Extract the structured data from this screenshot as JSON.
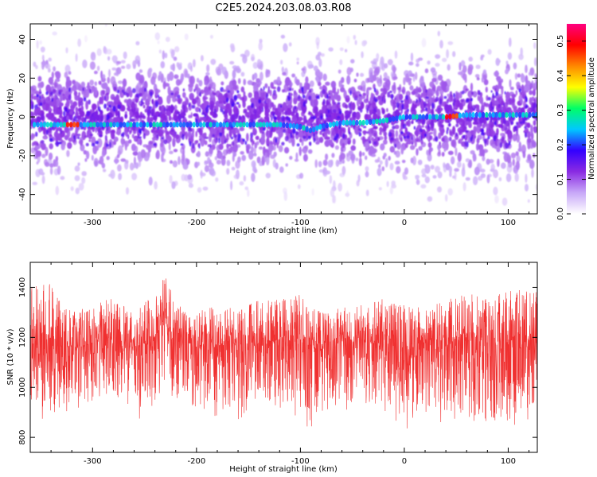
{
  "title": "C2E5.2024.203.08.03.R08",
  "chart_data": [
    {
      "type": "heatmap",
      "xlabel": "Height of straight line (km)",
      "ylabel": "Frequency (Hz)",
      "xlim": [
        -360,
        128
      ],
      "ylim": [
        -50,
        48
      ],
      "xticks": [
        -300,
        -200,
        -100,
        0,
        100
      ],
      "yticks": [
        -40,
        -20,
        0,
        20,
        40
      ],
      "ridge": {
        "x": [
          -350,
          -320,
          -300,
          -250,
          -200,
          -150,
          -120,
          -100,
          -90,
          -80,
          -60,
          -40,
          -20,
          0,
          20,
          40,
          60,
          80,
          100,
          128
        ],
        "y": [
          -4,
          -4,
          -4,
          -4,
          -4,
          -4,
          -4,
          -5,
          -7,
          -5,
          -3,
          -3,
          -2,
          0,
          0,
          0,
          1,
          1,
          1,
          1
        ]
      },
      "colorbar": {
        "label": "Normalized spectral amplitude",
        "range": [
          0.0,
          0.55
        ],
        "ticks": [
          0.0,
          0.1,
          0.2,
          0.3,
          0.4,
          0.5
        ],
        "colors": [
          "#ffffff",
          "#c8a8f8",
          "#8a2be2",
          "#3300ff",
          "#00c8ff",
          "#00ff66",
          "#ffff00",
          "#ff8800",
          "#ff0000",
          "#ff0080"
        ]
      }
    },
    {
      "type": "line",
      "xlabel": "Height of straight line (km)",
      "ylabel": "SNR (10 * v/v)",
      "xlim": [
        -360,
        128
      ],
      "ylim": [
        740,
        1500
      ],
      "xticks": [
        -300,
        -200,
        -100,
        0,
        100
      ],
      "yticks": [
        800,
        1000,
        1200,
        1400
      ],
      "color": "#f03030",
      "envelope": {
        "x": [
          -360,
          -340,
          -320,
          -300,
          -280,
          -260,
          -240,
          -230,
          -220,
          -200,
          -180,
          -160,
          -140,
          -120,
          -100,
          -80,
          -60,
          -40,
          -20,
          0,
          20,
          40,
          60,
          80,
          100,
          128
        ],
        "center": [
          1170,
          1170,
          1160,
          1170,
          1180,
          1150,
          1200,
          1260,
          1220,
          1160,
          1170,
          1160,
          1170,
          1180,
          1200,
          1170,
          1180,
          1190,
          1180,
          1160,
          1180,
          1190,
          1190,
          1180,
          1190,
          1190
        ],
        "high": [
          1400,
          1420,
          1300,
          1330,
          1360,
          1300,
          1380,
          1450,
          1350,
          1300,
          1330,
          1320,
          1350,
          1350,
          1380,
          1300,
          1320,
          1330,
          1360,
          1330,
          1320,
          1350,
          1380,
          1360,
          1400,
          1380
        ],
        "low": [
          950,
          900,
          900,
          950,
          960,
          920,
          920,
          980,
          950,
          900,
          930,
          860,
          930,
          920,
          900,
          900,
          930,
          920,
          940,
          880,
          920,
          900,
          880,
          860,
          880,
          900
        ]
      }
    }
  ]
}
